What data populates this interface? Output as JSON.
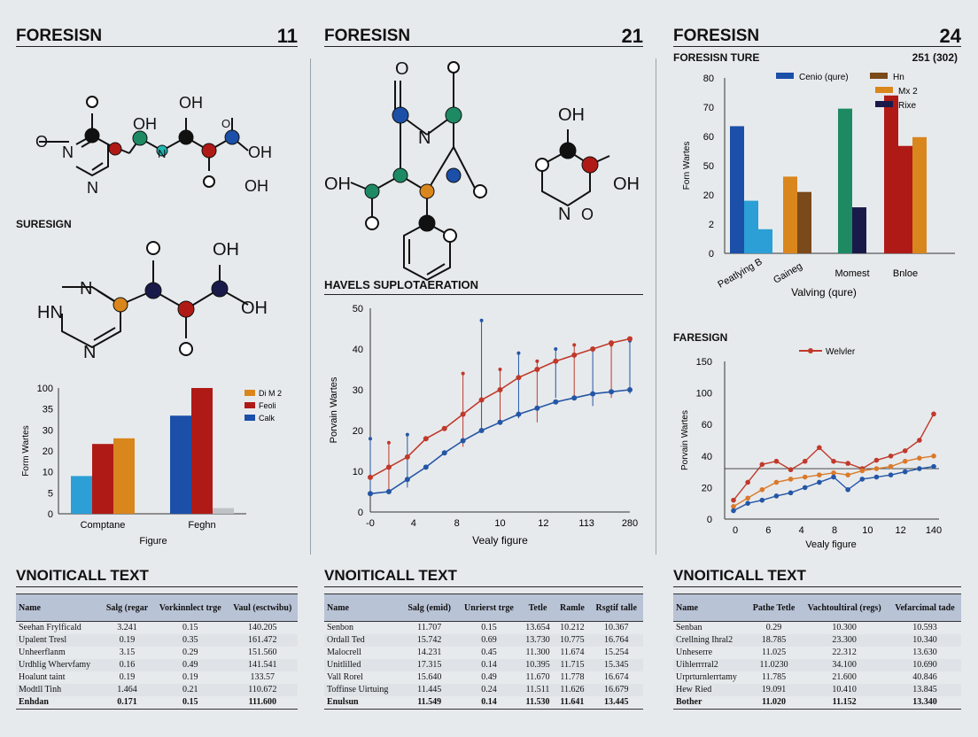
{
  "panels": [
    {
      "title": "FORESISN",
      "number": "11"
    },
    {
      "title": "FORESISN",
      "number": "21"
    },
    {
      "title": "FORESISN",
      "number": "24"
    }
  ],
  "left": {
    "subtitle": "SURESIGN",
    "mol1_labels": [
      "O",
      "N",
      "N",
      "OH",
      "OH",
      "N",
      "OH",
      "OH",
      "O"
    ],
    "mol2_labels": [
      "HN",
      "N",
      "N",
      "O",
      "OH",
      "OH",
      "O",
      "O"
    ]
  },
  "middle": {
    "mol_labels": [
      "O",
      "N",
      "OH",
      "OH",
      "N",
      "O"
    ],
    "subtitle": "HAVELS SUPLOTAERATION"
  },
  "right": {
    "subtitle": "FORESISN TURE",
    "value": "251 (302)",
    "line_subtitle": "FARESIGN"
  },
  "colors": {
    "blue": "#1b4fa8",
    "light_blue": "#2b9fd6",
    "red": "#b01a16",
    "orange": "#d9861d",
    "green": "#1d8a64",
    "brown": "#7a4a1a",
    "navy": "#1a1a4a",
    "gray": "#bfc3c6",
    "line_red": "#c0392b",
    "line_blue": "#2456a6"
  },
  "chart_data": [
    {
      "type": "bar",
      "ylabel": "Form Wartes",
      "xlabel": "Figure",
      "y_ticks": [
        "0",
        "5",
        "10",
        "20",
        "30",
        "35",
        "100"
      ],
      "categories": [
        "Comptane",
        "Feghn"
      ],
      "legend": [
        "Di M 2",
        "Feoli",
        "Calk"
      ],
      "series": [
        {
          "values": [
            20,
            52
          ]
        },
        {
          "values": [
            37,
            80
          ]
        },
        {
          "values": [
            40,
            3
          ]
        }
      ]
    },
    {
      "type": "scatter",
      "xlabel": "Vealy figure",
      "ylabel": "Porvain Wartes",
      "x_ticks": [
        "-0",
        "4",
        "8",
        "10",
        "12",
        "113",
        "280"
      ],
      "y_ticks": [
        "0",
        "10",
        "20",
        "30",
        "40",
        "50"
      ],
      "ylim": [
        0,
        50
      ],
      "series": [
        {
          "points": [
            [
              0,
              8.5
            ],
            [
              1,
              11
            ],
            [
              2,
              13.5
            ],
            [
              3,
              18
            ],
            [
              4,
              20.5
            ],
            [
              5,
              24
            ],
            [
              6,
              27.5
            ],
            [
              7,
              30
            ],
            [
              8,
              33
            ],
            [
              9,
              35
            ],
            [
              10,
              37
            ],
            [
              11,
              38.5
            ],
            [
              12,
              40
            ],
            [
              13,
              41.5
            ],
            [
              14,
              42.5
            ]
          ]
        },
        {
          "points": [
            [
              0,
              4.5
            ],
            [
              1,
              5
            ],
            [
              2,
              8
            ],
            [
              3,
              11
            ],
            [
              4,
              14.5
            ],
            [
              5,
              17.5
            ],
            [
              6,
              20
            ],
            [
              7,
              22
            ],
            [
              8,
              24
            ],
            [
              9,
              25.5
            ],
            [
              10,
              27
            ],
            [
              11,
              28
            ],
            [
              12,
              29
            ],
            [
              13,
              29.5
            ],
            [
              14,
              30
            ]
          ]
        }
      ],
      "bars": [
        {
          "x": 0,
          "lo": 4,
          "hi": 18
        },
        {
          "x": 1,
          "lo": 5,
          "hi": 17
        },
        {
          "x": 2,
          "lo": 6,
          "hi": 19
        },
        {
          "x": 5,
          "lo": 16,
          "hi": 34
        },
        {
          "x": 6,
          "lo": 20,
          "hi": 47
        },
        {
          "x": 7,
          "lo": 22,
          "hi": 35
        },
        {
          "x": 8,
          "lo": 23,
          "hi": 39
        },
        {
          "x": 9,
          "lo": 22,
          "hi": 37
        },
        {
          "x": 10,
          "lo": 28,
          "hi": 40
        },
        {
          "x": 11,
          "lo": 28,
          "hi": 41
        },
        {
          "x": 12,
          "lo": 26,
          "hi": 40
        },
        {
          "x": 13,
          "lo": 28,
          "hi": 41
        },
        {
          "x": 14,
          "lo": 29,
          "hi": 42
        }
      ]
    },
    {
      "type": "bar",
      "xlabel": "Valving (qure)",
      "ylabel": "Forn Wartes",
      "y_ticks": [
        "0",
        "2",
        "20",
        "50",
        "60",
        "70",
        "80"
      ],
      "categories": [
        "Peatlying B",
        "Gaineg",
        "Momest",
        "Bnloe"
      ],
      "legend": [
        "Cenio (qure)",
        "Hn",
        "Mx 2",
        "Rixe"
      ],
      "groups": [
        [
          {
            "v": 58,
            "color": "blue"
          },
          {
            "v": 24,
            "color": "light_blue"
          },
          {
            "v": 11,
            "color": "light_blue"
          }
        ],
        [
          {
            "v": 35,
            "color": "orange"
          },
          {
            "v": 28,
            "color": "brown"
          }
        ],
        [
          {
            "v": 66,
            "color": "green"
          },
          {
            "v": 21,
            "color": "navy"
          }
        ],
        [
          {
            "v": 72,
            "color": "red"
          },
          {
            "v": 49,
            "color": "red"
          },
          {
            "v": 53,
            "color": "orange"
          }
        ]
      ]
    },
    {
      "type": "line",
      "xlabel": "Vealy figure",
      "ylabel": "Porvain Wartes",
      "x_ticks": [
        "0",
        "6",
        "4",
        "8",
        "10",
        "12",
        "140"
      ],
      "y_ticks": [
        "0",
        "20",
        "40",
        "60",
        "100",
        "150"
      ],
      "ylim": [
        0,
        150
      ],
      "legend": [
        "Welvler"
      ],
      "series": [
        {
          "points": [
            [
              0,
              18
            ],
            [
              1,
              35
            ],
            [
              2,
              52
            ],
            [
              3,
              55
            ],
            [
              4,
              47
            ],
            [
              5,
              55
            ],
            [
              6,
              68
            ],
            [
              7,
              55
            ],
            [
              8,
              53
            ],
            [
              9,
              48
            ],
            [
              10,
              56
            ],
            [
              11,
              60
            ],
            [
              12,
              65
            ],
            [
              13,
              75
            ],
            [
              14,
              100
            ]
          ]
        },
        {
          "points": [
            [
              0,
              12
            ],
            [
              1,
              20
            ],
            [
              2,
              28
            ],
            [
              3,
              35
            ],
            [
              4,
              38
            ],
            [
              5,
              40
            ],
            [
              6,
              42
            ],
            [
              7,
              44
            ],
            [
              8,
              42
            ],
            [
              9,
              46
            ],
            [
              10,
              48
            ],
            [
              11,
              50
            ],
            [
              12,
              55
            ],
            [
              13,
              58
            ],
            [
              14,
              60
            ]
          ]
        },
        {
          "points": [
            [
              0,
              8
            ],
            [
              1,
              15
            ],
            [
              2,
              18
            ],
            [
              3,
              22
            ],
            [
              4,
              25
            ],
            [
              5,
              30
            ],
            [
              6,
              35
            ],
            [
              7,
              40
            ],
            [
              8,
              28
            ],
            [
              9,
              38
            ],
            [
              10,
              40
            ],
            [
              11,
              42
            ],
            [
              12,
              45
            ],
            [
              13,
              48
            ],
            [
              14,
              50
            ]
          ]
        }
      ]
    }
  ],
  "tables": [
    {
      "title": "VNOITICALL TEXT",
      "headers": [
        "Name",
        "Salg (regar",
        "Vorkinnlect trge",
        "Vaul (esctwibu)"
      ],
      "rows": [
        [
          "Seehan Frylficald",
          "3.241",
          "0.15",
          "140.205"
        ],
        [
          "Upalent Tresl",
          "0.19",
          "0.35",
          "161.472"
        ],
        [
          "Unheerflanm",
          "3.15",
          "0.29",
          "151.560"
        ],
        [
          "Urdhlig Whervfamy",
          "0.16",
          "0.49",
          "141.541"
        ],
        [
          "Hoalunt taint",
          "0.19",
          "0.19",
          "133.57"
        ],
        [
          "Modtll Tinh",
          "1.464",
          "0.21",
          "110.672"
        ],
        [
          "Enhdan",
          "0.171",
          "0.15",
          "111.600"
        ]
      ]
    },
    {
      "title": "VNOITICALL TEXT",
      "headers": [
        "Name",
        "Salg (emid)",
        "Unrierst trge",
        "Tetle",
        "Ramle",
        "Rsgtif talle"
      ],
      "rows": [
        [
          "Senbon",
          "11.707",
          "0.15",
          "13.654",
          "10.212",
          "10.367"
        ],
        [
          "Ordall Ted",
          "15.742",
          "0.69",
          "13.730",
          "10.775",
          "16.764"
        ],
        [
          "Malocrell",
          "14.231",
          "0.45",
          "11.300",
          "11.674",
          "15.254"
        ],
        [
          "Unitlilled",
          "17.315",
          "0.14",
          "10.395",
          "11.715",
          "15.345"
        ],
        [
          "Vall Rorel",
          "15.640",
          "0.49",
          "11.670",
          "11.778",
          "16.674"
        ],
        [
          "Toffinse Uirtuing",
          "11.445",
          "0.24",
          "11.511",
          "11.626",
          "16.679"
        ],
        [
          "Enulsun",
          "11.549",
          "0.14",
          "11.530",
          "11.641",
          "13.445"
        ]
      ]
    },
    {
      "title": "VNOITICALL TEXT",
      "headers": [
        "Name",
        "Pathe Tetle",
        "Vachtoultiral (regs)",
        "Vefarcimal tade"
      ],
      "rows": [
        [
          "Senban",
          "0.29",
          "10.300",
          "10.593"
        ],
        [
          "Crellning Ihral2",
          "18.785",
          "23.300",
          "10.340"
        ],
        [
          "Unheserre",
          "11.025",
          "22.312",
          "13.630"
        ],
        [
          "Uihlerrrral2",
          "11.0230",
          "34.100",
          "10.690"
        ],
        [
          "Urprturnlerrtamy",
          "11.785",
          "21.600",
          "40.846"
        ],
        [
          "Hew Ried",
          "19.091",
          "10.410",
          "13.845"
        ],
        [
          "Bother",
          "11.020",
          "11.152",
          "13.340"
        ]
      ]
    }
  ]
}
